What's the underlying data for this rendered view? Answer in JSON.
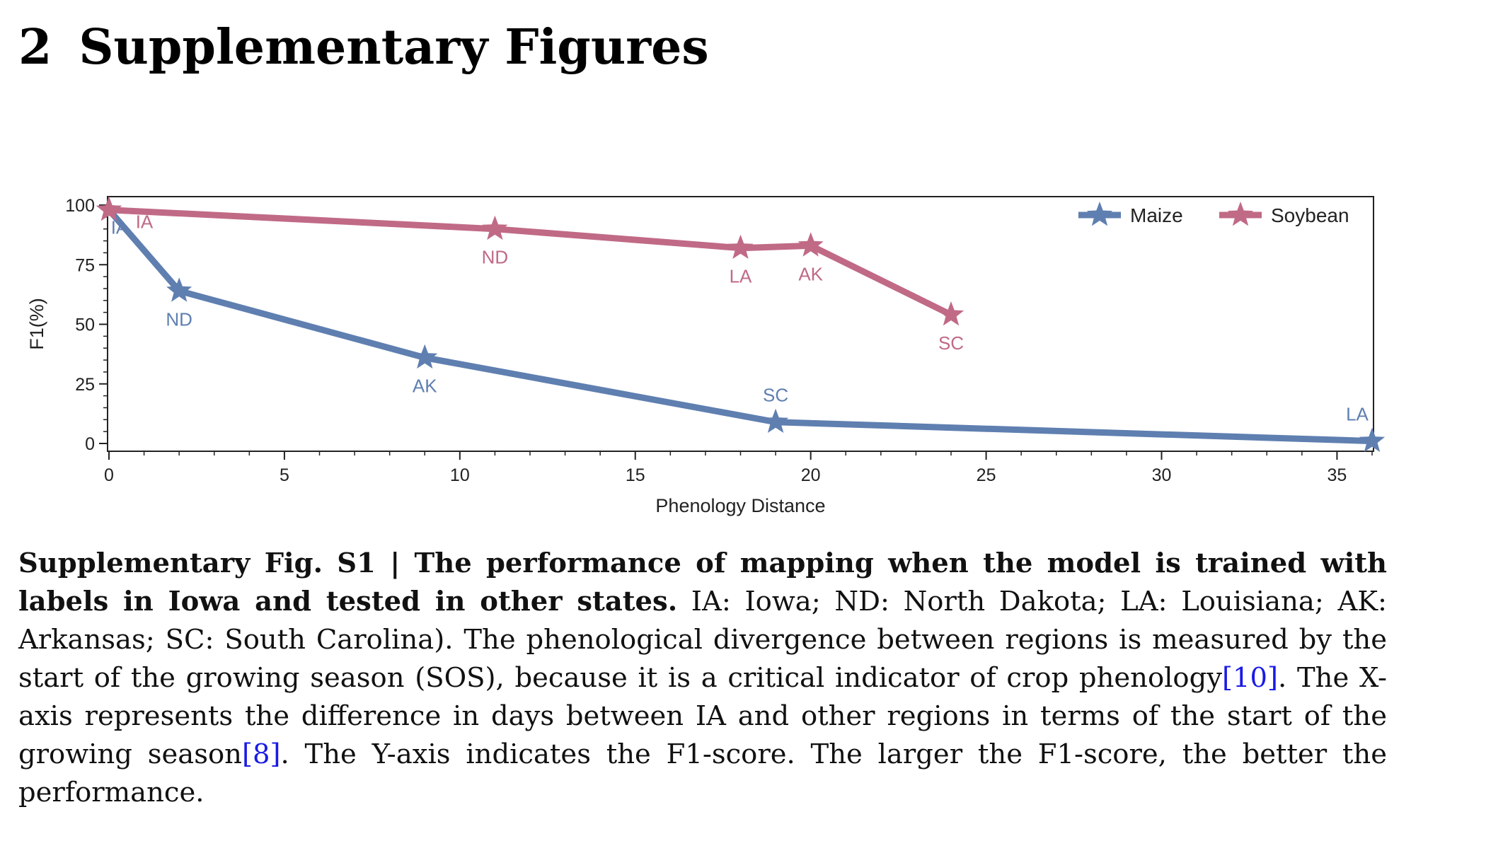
{
  "section": {
    "number": "2",
    "title": "Supplementary Figures"
  },
  "chart_data": {
    "type": "line",
    "xlabel": "Phenology Distance",
    "ylabel": "F1(%)",
    "xlim": [
      0,
      36
    ],
    "ylim": [
      0,
      100
    ],
    "xticks": [
      0,
      5,
      10,
      15,
      20,
      25,
      30,
      35
    ],
    "yticks": [
      0,
      25,
      50,
      75,
      100
    ],
    "grid": false,
    "legend_position": "top-right",
    "marker": "star",
    "series": [
      {
        "name": "Maize",
        "color": "#5f7fb0",
        "points": [
          {
            "label": "IA",
            "x": 0,
            "y": 98
          },
          {
            "label": "ND",
            "x": 2,
            "y": 64
          },
          {
            "label": "AK",
            "x": 9,
            "y": 36
          },
          {
            "label": "SC",
            "x": 19,
            "y": 9
          },
          {
            "label": "LA",
            "x": 36,
            "y": 1
          }
        ]
      },
      {
        "name": "Soybean",
        "color": "#c06a86",
        "points": [
          {
            "label": "IA",
            "x": 0,
            "y": 98
          },
          {
            "label": "ND",
            "x": 11,
            "y": 90
          },
          {
            "label": "LA",
            "x": 18,
            "y": 82
          },
          {
            "label": "AK",
            "x": 20,
            "y": 83
          },
          {
            "label": "SC",
            "x": 24,
            "y": 54
          }
        ]
      }
    ]
  },
  "caption": {
    "bold": "Supplementary Fig. S1  |  The performance of mapping when the model is trained with labels in Iowa and tested in other states.",
    "text1": " IA: Iowa; ND: North Dakota; LA: Louisiana; AK: Arkansas; SC: South Carolina). The phenological divergence between regions is measured by the start of the growing season (SOS), because it is a critical indicator of crop phenology",
    "cite1": "[10]",
    "text2": ". The X-axis represents the difference in days between IA and other regions in terms of the start of the growing season",
    "cite2": "[8]",
    "text3": ". The Y-axis indicates the F1-score. The larger the F1-score, the better the performance."
  }
}
